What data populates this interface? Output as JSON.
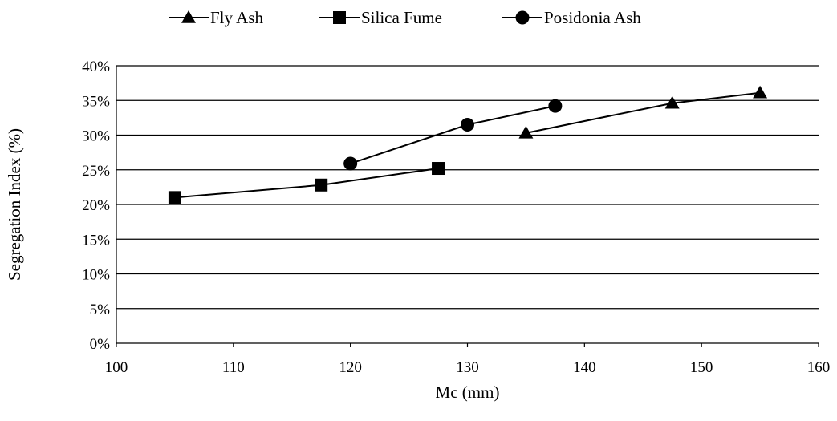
{
  "chart_data": {
    "type": "line",
    "xlabel": "Mc (mm)",
    "ylabel": "Segregation Index (%)",
    "xlim": [
      100,
      160
    ],
    "ylim": [
      0,
      40
    ],
    "x_ticks": [
      "100",
      "110",
      "120",
      "130",
      "140",
      "150",
      "160"
    ],
    "y_ticks": [
      "0%",
      "5%",
      "10%",
      "15%",
      "20%",
      "25%",
      "30%",
      "35%",
      "40%"
    ],
    "grid": "horizontal",
    "legend_position": "top",
    "series": [
      {
        "name": "Fly Ash",
        "marker": "triangle",
        "x": [
          135,
          147.5,
          155
        ],
        "y": [
          30.3,
          34.6,
          36.1
        ]
      },
      {
        "name": "Silica Fume",
        "marker": "square",
        "x": [
          105,
          117.5,
          127.5
        ],
        "y": [
          21,
          22.8,
          25.2
        ]
      },
      {
        "name": "Posidonia Ash",
        "marker": "circle",
        "x": [
          120,
          130,
          137.5
        ],
        "y": [
          25.9,
          31.5,
          34.2
        ]
      }
    ],
    "colors": {
      "line": "#000000",
      "marker": "#000000",
      "grid": "#000000",
      "axis": "#000000"
    }
  }
}
